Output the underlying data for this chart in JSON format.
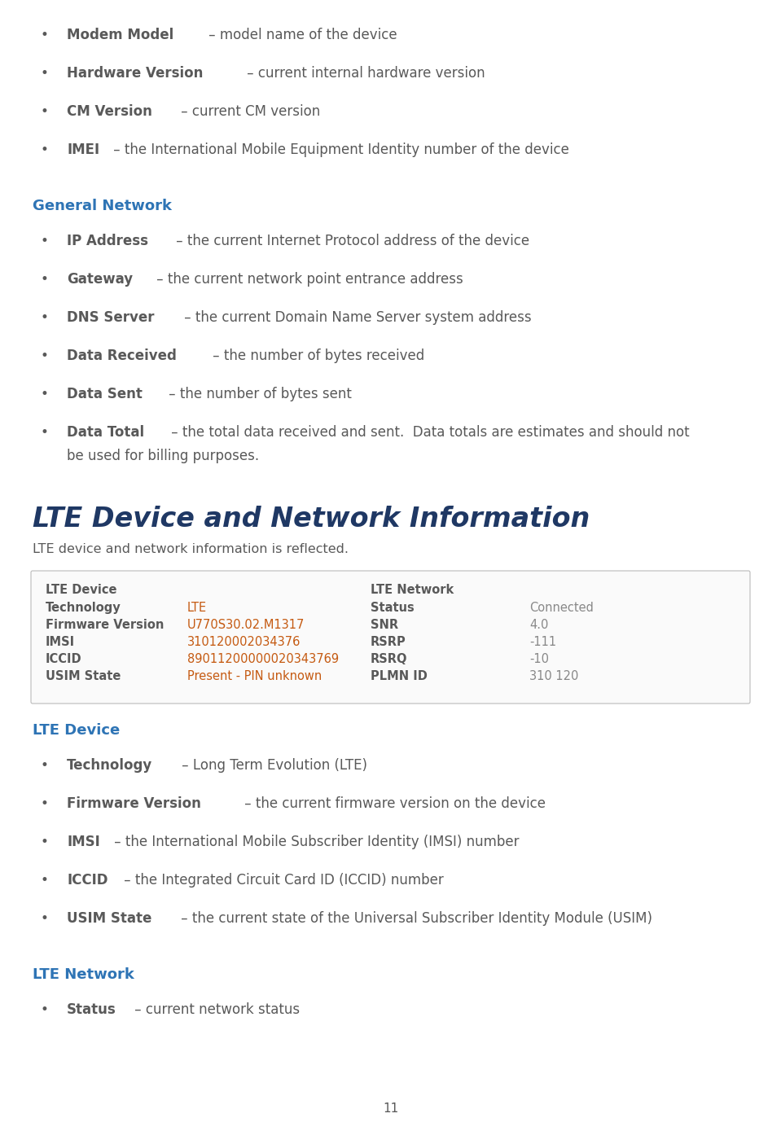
{
  "bg_color": "#ffffff",
  "text_color": "#595959",
  "blue_heading_color": "#2E74B5",
  "lte_title_color": "#1F3864",
  "orange_value_color": "#C55A11",
  "page_number": "11",
  "bullet_items_top": [
    {
      "bold": "Modem Model",
      "rest": " – model name of the device"
    },
    {
      "bold": "Hardware Version",
      "rest": " – current internal hardware version"
    },
    {
      "bold": "CM Version",
      "rest": " – current CM version"
    },
    {
      "bold": "IMEI",
      "rest": " – the International Mobile Equipment Identity number of the device"
    }
  ],
  "general_network_heading": "General Network",
  "general_network_items": [
    {
      "bold": "IP Address",
      "rest": " – the current Internet Protocol address of the device"
    },
    {
      "bold": "Gateway",
      "rest": " – the current network point entrance address"
    },
    {
      "bold": "DNS Server",
      "rest": " – the current Domain Name Server system address"
    },
    {
      "bold": "Data Received",
      "rest": " – the number of bytes received"
    },
    {
      "bold": "Data Sent",
      "rest": " – the number of bytes sent"
    },
    {
      "bold": "Data Total",
      "rest": " – the total data received and sent.  Data totals are estimates and should not be used for billing purposes.",
      "wrap": true
    }
  ],
  "lte_main_heading": "LTE Device and Network Information",
  "lte_subtitle": "LTE device and network information is reflected.",
  "table": {
    "left_header": "LTE Device",
    "right_header": "LTE Network",
    "rows": [
      {
        "left_label": "Technology",
        "left_val": "LTE",
        "right_label": "Status",
        "right_val": "Connected"
      },
      {
        "left_label": "Firmware Version",
        "left_val": "U770S30.02.M1317",
        "right_label": "SNR",
        "right_val": "4.0"
      },
      {
        "left_label": "IMSI",
        "left_val": "310120002034376",
        "right_label": "RSRP",
        "right_val": "-111"
      },
      {
        "left_label": "ICCID",
        "left_val": "89011200000020343769",
        "right_label": "RSRQ",
        "right_val": "-10"
      },
      {
        "left_label": "USIM State",
        "left_val": "Present - PIN unknown",
        "right_label": "PLMN ID",
        "right_val": "310 120"
      }
    ]
  },
  "lte_device_heading": "LTE Device",
  "lte_device_items": [
    {
      "bold": "Technology",
      "rest": " – Long Term Evolution (LTE)"
    },
    {
      "bold": "Firmware Version",
      "rest": " – the current firmware version on the device"
    },
    {
      "bold": "IMSI",
      "rest": " – the International Mobile Subscriber Identity (IMSI) number"
    },
    {
      "bold": "ICCID",
      "rest": " – the Integrated Circuit Card ID (ICCID) number"
    },
    {
      "bold": "USIM State",
      "rest": " – the current state of the Universal Subscriber Identity Module (USIM)"
    }
  ],
  "lte_network_heading": "LTE Network",
  "lte_network_items": [
    {
      "bold": "Status",
      "rest": " – current network status"
    }
  ]
}
